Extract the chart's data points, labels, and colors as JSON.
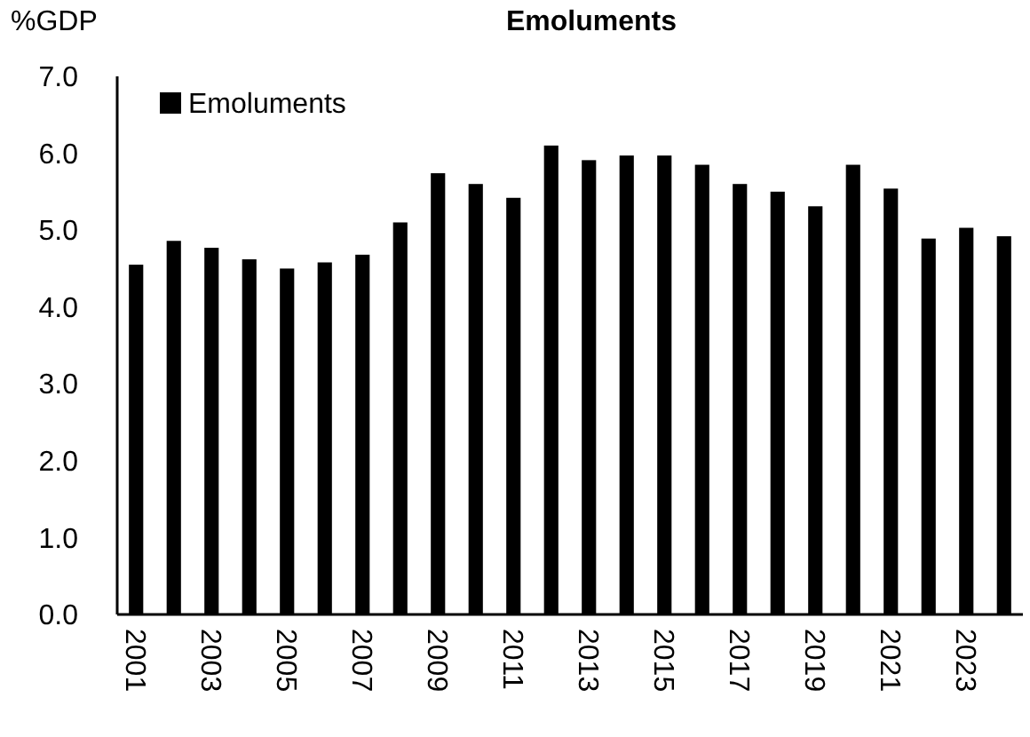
{
  "chart_data": {
    "type": "bar",
    "title": "Emoluments",
    "ylabel": "%GDP",
    "categories": [
      "2001",
      null,
      "2003",
      null,
      "2005",
      null,
      "2007",
      null,
      "2009",
      null,
      "2011",
      null,
      "2013",
      null,
      "2015",
      null,
      "2017",
      null,
      "2019",
      null,
      "2021",
      null,
      "2023",
      null
    ],
    "series": [
      {
        "name": "Emoluments",
        "color": "#000000",
        "values": [
          4.55,
          4.86,
          4.77,
          4.62,
          4.5,
          4.58,
          4.68,
          5.1,
          5.74,
          5.6,
          5.42,
          6.1,
          5.91,
          5.97,
          5.97,
          5.85,
          5.6,
          5.5,
          5.31,
          5.85,
          5.54,
          4.89,
          5.03,
          4.92
        ]
      }
    ],
    "ylim": [
      0,
      7
    ],
    "yticks": [
      {
        "value": 0,
        "label": "0.0"
      },
      {
        "value": 1,
        "label": "1.0"
      },
      {
        "value": 2,
        "label": "2.0"
      },
      {
        "value": 3,
        "label": "3.0"
      },
      {
        "value": 4,
        "label": "4.0"
      },
      {
        "value": 5,
        "label": "5.0"
      },
      {
        "value": 6,
        "label": "6.0"
      },
      {
        "value": 7,
        "label": "7.0"
      }
    ],
    "grid": false,
    "legend": "top left"
  }
}
